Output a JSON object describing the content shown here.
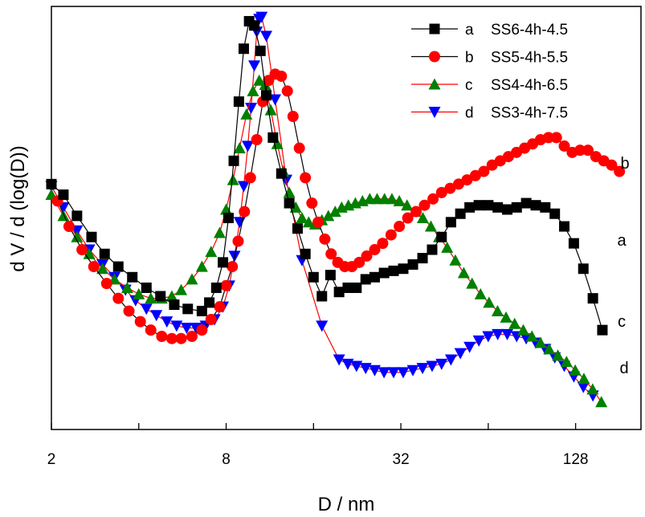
{
  "chart_data": {
    "type": "line",
    "xlabel": "D / nm",
    "ylabel": "d V / d (log(D))",
    "x_scale": "log2",
    "xlim": [
      2,
      215
    ],
    "ylim": [
      0,
      1
    ],
    "x_ticks": [
      2,
      8,
      32,
      128
    ],
    "x_tick_labels": [
      "2",
      "8",
      "32",
      "128"
    ],
    "y_tick_labels_shown": false,
    "grid": false,
    "legend_position": "top-right",
    "series": [
      {
        "name": "SS6-4h-4.5",
        "letter": "a",
        "end_label": "a",
        "marker": "square",
        "marker_color": "#000000",
        "line_color": "#000000",
        "points": [
          [
            2.0,
            0.58
          ],
          [
            2.2,
            0.555
          ],
          [
            2.45,
            0.505
          ],
          [
            2.75,
            0.455
          ],
          [
            3.05,
            0.415
          ],
          [
            3.4,
            0.385
          ],
          [
            3.8,
            0.36
          ],
          [
            4.25,
            0.335
          ],
          [
            4.75,
            0.315
          ],
          [
            5.3,
            0.295
          ],
          [
            5.9,
            0.285
          ],
          [
            6.6,
            0.28
          ],
          [
            7.0,
            0.3
          ],
          [
            7.4,
            0.335
          ],
          [
            7.8,
            0.395
          ],
          [
            8.15,
            0.5
          ],
          [
            8.5,
            0.635
          ],
          [
            8.85,
            0.775
          ],
          [
            9.2,
            0.9
          ],
          [
            9.6,
            0.965
          ],
          [
            10.0,
            0.955
          ],
          [
            10.5,
            0.895
          ],
          [
            11.0,
            0.79
          ],
          [
            11.6,
            0.69
          ],
          [
            12.4,
            0.605
          ],
          [
            13.2,
            0.535
          ],
          [
            14.1,
            0.475
          ],
          [
            15.0,
            0.415
          ],
          [
            16.0,
            0.36
          ],
          [
            17.1,
            0.315
          ],
          [
            18.3,
            0.365
          ],
          [
            19.6,
            0.325
          ],
          [
            21.0,
            0.335
          ],
          [
            22.5,
            0.335
          ],
          [
            24.2,
            0.355
          ],
          [
            26.0,
            0.36
          ],
          [
            28.0,
            0.37
          ],
          [
            30.2,
            0.375
          ],
          [
            32.6,
            0.38
          ],
          [
            35.2,
            0.39
          ],
          [
            38.0,
            0.405
          ],
          [
            41.0,
            0.425
          ],
          [
            44.2,
            0.455
          ],
          [
            47.6,
            0.49
          ],
          [
            51.3,
            0.51
          ],
          [
            55.2,
            0.525
          ],
          [
            59.4,
            0.53
          ],
          [
            64.0,
            0.53
          ],
          [
            69.0,
            0.525
          ],
          [
            74.4,
            0.52
          ],
          [
            80.2,
            0.525
          ],
          [
            86.5,
            0.535
          ],
          [
            93.3,
            0.53
          ],
          [
            100.6,
            0.525
          ],
          [
            108.5,
            0.51
          ],
          [
            117.0,
            0.48
          ],
          [
            126.2,
            0.44
          ],
          [
            136.1,
            0.38
          ],
          [
            146.8,
            0.31
          ],
          [
            158.3,
            0.235
          ]
        ]
      },
      {
        "name": "SS5-4h-5.5",
        "letter": "b",
        "end_label": "b",
        "marker": "circle",
        "marker_color": "#ff0000",
        "line_color": "#000000",
        "points": [
          [
            2.1,
            0.54
          ],
          [
            2.3,
            0.48
          ],
          [
            2.55,
            0.425
          ],
          [
            2.8,
            0.385
          ],
          [
            3.1,
            0.345
          ],
          [
            3.4,
            0.31
          ],
          [
            3.7,
            0.28
          ],
          [
            4.05,
            0.255
          ],
          [
            4.4,
            0.235
          ],
          [
            4.8,
            0.22
          ],
          [
            5.2,
            0.215
          ],
          [
            5.6,
            0.215
          ],
          [
            6.1,
            0.22
          ],
          [
            6.6,
            0.235
          ],
          [
            7.1,
            0.26
          ],
          [
            7.6,
            0.29
          ],
          [
            8.0,
            0.34
          ],
          [
            8.4,
            0.385
          ],
          [
            8.8,
            0.445
          ],
          [
            9.25,
            0.515
          ],
          [
            9.7,
            0.595
          ],
          [
            10.2,
            0.685
          ],
          [
            10.7,
            0.775
          ],
          [
            11.2,
            0.825
          ],
          [
            11.8,
            0.84
          ],
          [
            12.4,
            0.835
          ],
          [
            13.0,
            0.8
          ],
          [
            13.6,
            0.74
          ],
          [
            14.3,
            0.665
          ],
          [
            15.0,
            0.595
          ],
          [
            15.8,
            0.535
          ],
          [
            16.6,
            0.49
          ],
          [
            17.5,
            0.45
          ],
          [
            18.4,
            0.415
          ],
          [
            19.4,
            0.395
          ],
          [
            20.5,
            0.385
          ],
          [
            21.7,
            0.385
          ],
          [
            23.0,
            0.395
          ],
          [
            24.4,
            0.41
          ],
          [
            26.0,
            0.425
          ],
          [
            27.7,
            0.44
          ],
          [
            29.6,
            0.46
          ],
          [
            31.6,
            0.48
          ],
          [
            33.8,
            0.5
          ],
          [
            36.1,
            0.515
          ],
          [
            38.6,
            0.53
          ],
          [
            41.3,
            0.545
          ],
          [
            44.2,
            0.56
          ],
          [
            47.3,
            0.57
          ],
          [
            50.6,
            0.58
          ],
          [
            54.1,
            0.59
          ],
          [
            57.8,
            0.6
          ],
          [
            61.8,
            0.61
          ],
          [
            66.0,
            0.625
          ],
          [
            70.4,
            0.635
          ],
          [
            75.1,
            0.645
          ],
          [
            80.1,
            0.655
          ],
          [
            85.4,
            0.665
          ],
          [
            91.0,
            0.675
          ],
          [
            96.9,
            0.685
          ],
          [
            103.2,
            0.69
          ],
          [
            109.9,
            0.69
          ],
          [
            117.0,
            0.67
          ],
          [
            124.6,
            0.655
          ],
          [
            132.6,
            0.66
          ],
          [
            141.2,
            0.66
          ],
          [
            150.3,
            0.645
          ],
          [
            160.0,
            0.635
          ],
          [
            170.3,
            0.625
          ],
          [
            181.2,
            0.61
          ]
        ]
      },
      {
        "name": "SS4-4h-6.5",
        "letter": "c",
        "end_label": "c",
        "marker": "triangle-up",
        "marker_color": "#008000",
        "line_color": "#ff0000",
        "points": [
          [
            2.0,
            0.555
          ],
          [
            2.2,
            0.505
          ],
          [
            2.45,
            0.455
          ],
          [
            2.7,
            0.415
          ],
          [
            3.0,
            0.38
          ],
          [
            3.3,
            0.355
          ],
          [
            3.65,
            0.335
          ],
          [
            4.0,
            0.32
          ],
          [
            4.4,
            0.31
          ],
          [
            4.8,
            0.31
          ],
          [
            5.2,
            0.315
          ],
          [
            5.6,
            0.33
          ],
          [
            6.1,
            0.355
          ],
          [
            6.6,
            0.385
          ],
          [
            7.1,
            0.42
          ],
          [
            7.6,
            0.465
          ],
          [
            8.0,
            0.52
          ],
          [
            8.45,
            0.59
          ],
          [
            8.9,
            0.665
          ],
          [
            9.4,
            0.745
          ],
          [
            9.9,
            0.8
          ],
          [
            10.4,
            0.825
          ],
          [
            10.9,
            0.815
          ],
          [
            11.4,
            0.755
          ],
          [
            12.0,
            0.675
          ],
          [
            12.6,
            0.61
          ],
          [
            13.2,
            0.56
          ],
          [
            13.9,
            0.525
          ],
          [
            14.6,
            0.5
          ],
          [
            15.4,
            0.49
          ],
          [
            16.2,
            0.485
          ],
          [
            17.1,
            0.495
          ],
          [
            18.0,
            0.505
          ],
          [
            19.0,
            0.515
          ],
          [
            20.0,
            0.525
          ],
          [
            21.1,
            0.53
          ],
          [
            22.3,
            0.535
          ],
          [
            23.6,
            0.54
          ],
          [
            25.0,
            0.545
          ],
          [
            26.5,
            0.545
          ],
          [
            28.1,
            0.545
          ],
          [
            29.8,
            0.545
          ],
          [
            31.6,
            0.54
          ],
          [
            33.6,
            0.53
          ],
          [
            35.8,
            0.515
          ],
          [
            38.1,
            0.5
          ],
          [
            40.6,
            0.48
          ],
          [
            43.3,
            0.455
          ],
          [
            46.2,
            0.43
          ],
          [
            49.3,
            0.4
          ],
          [
            52.7,
            0.37
          ],
          [
            56.3,
            0.345
          ],
          [
            60.2,
            0.32
          ],
          [
            64.4,
            0.3
          ],
          [
            68.9,
            0.28
          ],
          [
            73.7,
            0.265
          ],
          [
            78.9,
            0.25
          ],
          [
            84.5,
            0.235
          ],
          [
            90.5,
            0.22
          ],
          [
            96.9,
            0.205
          ],
          [
            103.8,
            0.19
          ],
          [
            111.2,
            0.175
          ],
          [
            119.1,
            0.16
          ],
          [
            127.6,
            0.14
          ],
          [
            136.7,
            0.12
          ],
          [
            146.5,
            0.095
          ],
          [
            157.0,
            0.065
          ]
        ]
      },
      {
        "name": "SS3-4h-7.5",
        "letter": "d",
        "end_label": "d",
        "marker": "triangle-down",
        "marker_color": "#0000ff",
        "line_color": "#ff0000",
        "points": [
          [
            2.0,
            0.575
          ],
          [
            2.2,
            0.525
          ],
          [
            2.45,
            0.47
          ],
          [
            2.7,
            0.425
          ],
          [
            3.0,
            0.39
          ],
          [
            3.3,
            0.36
          ],
          [
            3.6,
            0.33
          ],
          [
            3.9,
            0.305
          ],
          [
            4.25,
            0.285
          ],
          [
            4.6,
            0.27
          ],
          [
            5.0,
            0.255
          ],
          [
            5.4,
            0.245
          ],
          [
            5.85,
            0.24
          ],
          [
            6.3,
            0.24
          ],
          [
            6.8,
            0.245
          ],
          [
            7.3,
            0.26
          ],
          [
            7.8,
            0.29
          ],
          [
            8.2,
            0.34
          ],
          [
            8.55,
            0.41
          ],
          [
            8.9,
            0.49
          ],
          [
            9.2,
            0.575
          ],
          [
            9.5,
            0.67
          ],
          [
            9.75,
            0.76
          ],
          [
            10.0,
            0.86
          ],
          [
            10.2,
            0.94
          ],
          [
            10.4,
            0.97
          ],
          [
            10.6,
            0.975
          ],
          [
            11.0,
            0.93
          ],
          [
            11.8,
            0.78
          ],
          [
            12.9,
            0.59
          ],
          [
            14.6,
            0.4
          ],
          [
            17.1,
            0.245
          ],
          [
            19.6,
            0.165
          ],
          [
            21.0,
            0.155
          ],
          [
            22.5,
            0.15
          ],
          [
            24.2,
            0.145
          ],
          [
            26.0,
            0.14
          ],
          [
            28.0,
            0.135
          ],
          [
            30.2,
            0.135
          ],
          [
            32.6,
            0.135
          ],
          [
            35.2,
            0.14
          ],
          [
            38.0,
            0.145
          ],
          [
            41.0,
            0.15
          ],
          [
            44.2,
            0.155
          ],
          [
            47.6,
            0.165
          ],
          [
            51.3,
            0.18
          ],
          [
            55.2,
            0.195
          ],
          [
            59.4,
            0.21
          ],
          [
            64.0,
            0.22
          ],
          [
            69.0,
            0.225
          ],
          [
            74.4,
            0.225
          ],
          [
            80.2,
            0.22
          ],
          [
            86.5,
            0.215
          ],
          [
            93.3,
            0.205
          ],
          [
            100.6,
            0.19
          ],
          [
            108.5,
            0.17
          ],
          [
            117.0,
            0.15
          ],
          [
            126.2,
            0.125
          ],
          [
            136.1,
            0.1
          ],
          [
            146.8,
            0.08
          ]
        ]
      }
    ]
  }
}
